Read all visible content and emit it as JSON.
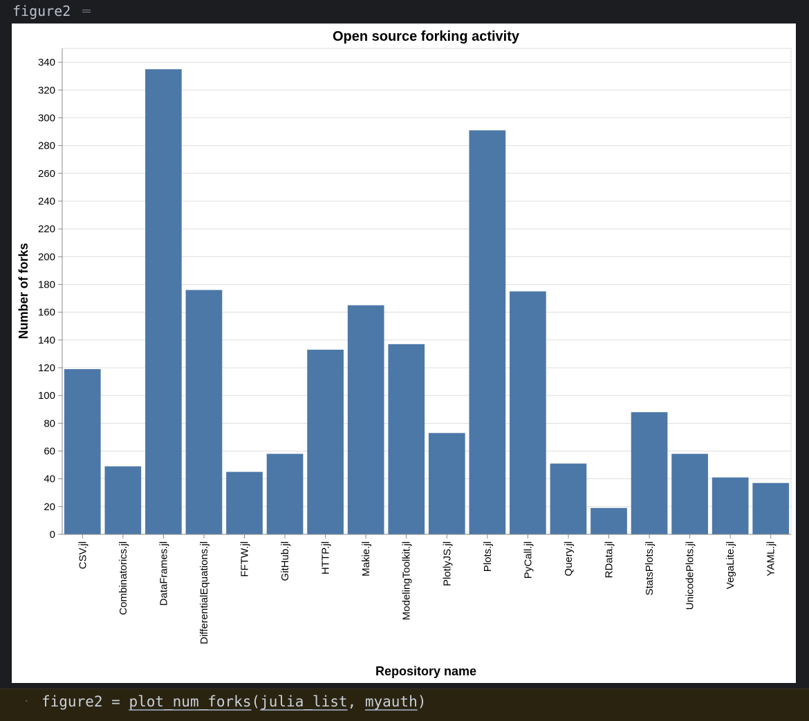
{
  "cell": {
    "output_name": "figure2",
    "code_var": "figure2",
    "code_eq": " = ",
    "code_fn": "plot_num_forks",
    "code_open": "(",
    "code_arg1": "julia_list",
    "code_sep": ", ",
    "code_arg2": "myauth",
    "code_close": ")"
  },
  "chart_data": {
    "type": "bar",
    "title": "Open source forking activity",
    "xlabel": "Repository name",
    "ylabel": "Number of forks",
    "ylim": [
      0,
      350
    ],
    "yticks": [
      0,
      20,
      40,
      60,
      80,
      100,
      120,
      140,
      160,
      180,
      200,
      220,
      240,
      260,
      280,
      300,
      320,
      340
    ],
    "grid": true,
    "bar_color": "#4c78a8",
    "categories": [
      "CSV.jl",
      "Combinatorics.jl",
      "DataFrames.jl",
      "DifferentialEquations.jl",
      "FFTW.jl",
      "GitHub.jl",
      "HTTP.jl",
      "Makie.jl",
      "ModelingToolkit.jl",
      "PlotlyJS.jl",
      "Plots.jl",
      "PyCall.jl",
      "Query.jl",
      "RData.jl",
      "StatsPlots.jl",
      "UnicodePlots.jl",
      "VegaLite.jl",
      "YAML.jl"
    ],
    "values": [
      119,
      49,
      335,
      176,
      45,
      58,
      133,
      165,
      137,
      73,
      291,
      175,
      51,
      19,
      88,
      58,
      41,
      37
    ]
  }
}
